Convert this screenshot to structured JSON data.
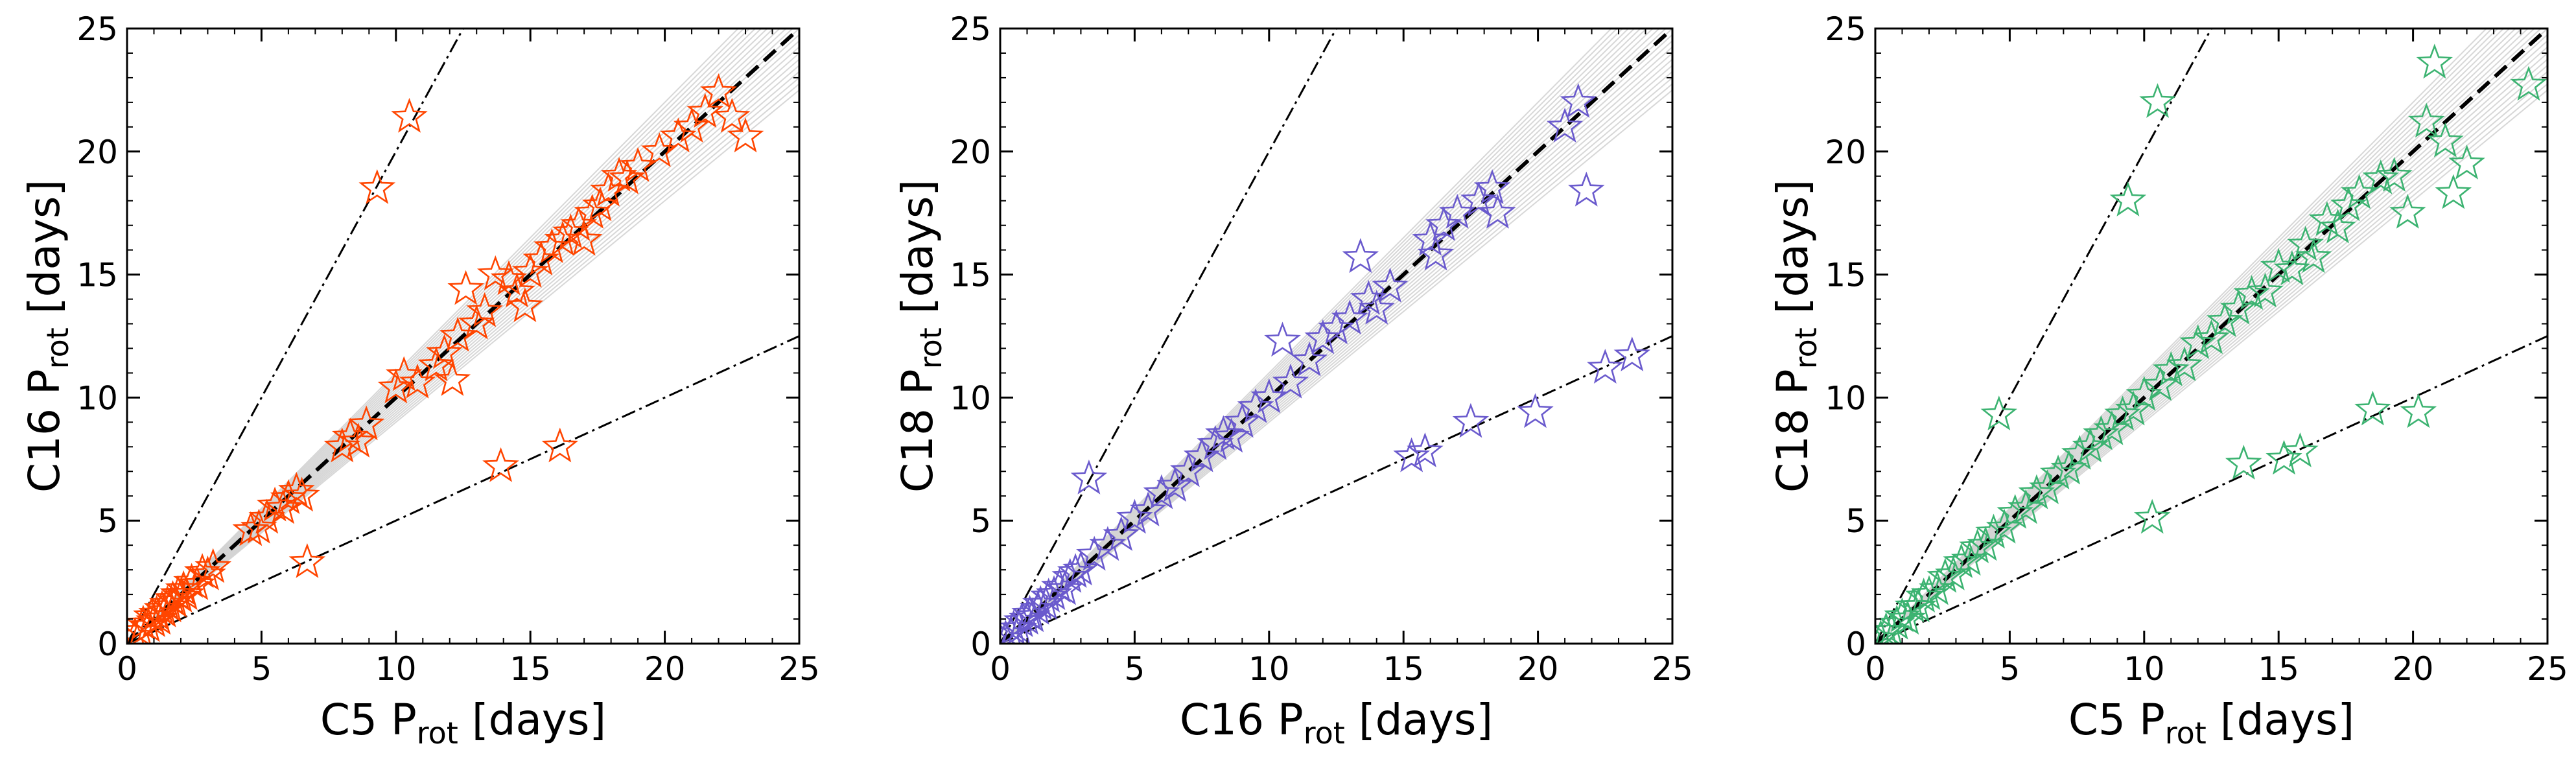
{
  "chart_data": [
    {
      "type": "scatter",
      "xlabel": "C5 P",
      "xlabel_sub": "rot",
      "xlabel_unit": " [days]",
      "ylabel": "C16 P",
      "ylabel_sub": "rot",
      "ylabel_unit": " [days]",
      "xlim": [
        0,
        25
      ],
      "ylim": [
        0,
        25
      ],
      "xticks": [
        0,
        5,
        10,
        15,
        20,
        25
      ],
      "yticks": [
        0,
        5,
        10,
        15,
        20,
        25
      ],
      "marker_color": "#ff4500",
      "reference_lines": [
        {
          "style": "dashed",
          "slope": 1
        },
        {
          "style": "dashdot",
          "slope": 2
        },
        {
          "style": "dashdot",
          "slope": 0.5
        }
      ],
      "band": {
        "color": "#d3d3d3",
        "slope_min": 0.9,
        "slope_max": 1.1
      },
      "points": [
        [
          0.3,
          0.3
        ],
        [
          0.5,
          0.5
        ],
        [
          0.6,
          0.8
        ],
        [
          0.8,
          0.7
        ],
        [
          0.9,
          1.1
        ],
        [
          1.0,
          0.9
        ],
        [
          1.1,
          1.2
        ],
        [
          1.2,
          1.0
        ],
        [
          1.3,
          1.4
        ],
        [
          1.4,
          1.3
        ],
        [
          1.5,
          1.6
        ],
        [
          1.6,
          1.5
        ],
        [
          1.7,
          1.8
        ],
        [
          1.8,
          1.7
        ],
        [
          1.9,
          2.0
        ],
        [
          2.0,
          1.9
        ],
        [
          2.1,
          2.2
        ],
        [
          2.2,
          2.0
        ],
        [
          2.4,
          2.5
        ],
        [
          2.6,
          2.4
        ],
        [
          2.8,
          2.9
        ],
        [
          3.0,
          2.8
        ],
        [
          3.2,
          3.1
        ],
        [
          4.6,
          4.6
        ],
        [
          4.9,
          4.7
        ],
        [
          5.2,
          5.1
        ],
        [
          5.5,
          5.6
        ],
        [
          5.8,
          5.5
        ],
        [
          6.0,
          5.9
        ],
        [
          6.3,
          6.2
        ],
        [
          6.5,
          6.0
        ],
        [
          6.7,
          3.3
        ],
        [
          8.0,
          8.0
        ],
        [
          8.3,
          8.4
        ],
        [
          8.6,
          8.2
        ],
        [
          8.9,
          8.9
        ],
        [
          9.3,
          18.5
        ],
        [
          10.0,
          10.4
        ],
        [
          10.3,
          10.9
        ],
        [
          10.5,
          21.4
        ],
        [
          10.8,
          10.6
        ],
        [
          11.5,
          11.3
        ],
        [
          11.8,
          11.8
        ],
        [
          12.1,
          10.7
        ],
        [
          12.3,
          12.5
        ],
        [
          12.6,
          14.4
        ],
        [
          13.0,
          13.0
        ],
        [
          13.3,
          13.5
        ],
        [
          13.7,
          15.0
        ],
        [
          13.9,
          7.2
        ],
        [
          14.2,
          14.8
        ],
        [
          14.5,
          14.3
        ],
        [
          14.8,
          13.7
        ],
        [
          15.0,
          15.1
        ],
        [
          15.4,
          15.6
        ],
        [
          15.8,
          16.1
        ],
        [
          16.1,
          8.0
        ],
        [
          16.2,
          16.4
        ],
        [
          16.5,
          16.7
        ],
        [
          16.8,
          17.0
        ],
        [
          17.0,
          16.4
        ],
        [
          17.3,
          17.5
        ],
        [
          17.6,
          17.8
        ],
        [
          17.9,
          18.4
        ],
        [
          18.3,
          19.0
        ],
        [
          18.6,
          18.9
        ],
        [
          19.0,
          19.4
        ],
        [
          19.8,
          20.0
        ],
        [
          20.5,
          20.6
        ],
        [
          21.0,
          21.0
        ],
        [
          21.5,
          21.6
        ],
        [
          22.0,
          22.4
        ],
        [
          22.5,
          21.4
        ],
        [
          23.0,
          20.6
        ]
      ]
    },
    {
      "type": "scatter",
      "xlabel": "C16 P",
      "xlabel_sub": "rot",
      "xlabel_unit": " [days]",
      "ylabel": "C18 P",
      "ylabel_sub": "rot",
      "ylabel_unit": " [days]",
      "xlim": [
        0,
        25
      ],
      "ylim": [
        0,
        25
      ],
      "xticks": [
        0,
        5,
        10,
        15,
        20,
        25
      ],
      "yticks": [
        0,
        5,
        10,
        15,
        20,
        25
      ],
      "marker_color": "#6a5acd",
      "reference_lines": [
        {
          "style": "dashed",
          "slope": 1
        },
        {
          "style": "dashdot",
          "slope": 2
        },
        {
          "style": "dashdot",
          "slope": 0.5
        }
      ],
      "band": {
        "color": "#d3d3d3",
        "slope_min": 0.9,
        "slope_max": 1.1
      },
      "points": [
        [
          0.2,
          0.2
        ],
        [
          0.4,
          0.4
        ],
        [
          0.5,
          0.6
        ],
        [
          0.7,
          0.6
        ],
        [
          0.8,
          0.9
        ],
        [
          1.0,
          1.0
        ],
        [
          1.1,
          1.2
        ],
        [
          1.2,
          1.1
        ],
        [
          1.4,
          1.4
        ],
        [
          1.5,
          1.6
        ],
        [
          1.7,
          1.6
        ],
        [
          1.8,
          1.9
        ],
        [
          2.0,
          2.0
        ],
        [
          2.2,
          2.3
        ],
        [
          2.4,
          2.2
        ],
        [
          2.6,
          2.7
        ],
        [
          2.8,
          2.9
        ],
        [
          3.0,
          3.0
        ],
        [
          3.3,
          6.7
        ],
        [
          3.5,
          3.6
        ],
        [
          4.0,
          4.0
        ],
        [
          4.5,
          4.4
        ],
        [
          5.0,
          5.1
        ],
        [
          5.5,
          5.4
        ],
        [
          6.0,
          6.1
        ],
        [
          6.5,
          6.4
        ],
        [
          7.0,
          7.0
        ],
        [
          7.5,
          7.6
        ],
        [
          8.0,
          8.1
        ],
        [
          8.3,
          8.5
        ],
        [
          8.6,
          8.4
        ],
        [
          9.0,
          9.0
        ],
        [
          9.5,
          9.6
        ],
        [
          10.0,
          10.0
        ],
        [
          10.5,
          12.3
        ],
        [
          10.8,
          10.6
        ],
        [
          11.5,
          11.5
        ],
        [
          12.0,
          12.4
        ],
        [
          12.5,
          12.8
        ],
        [
          13.0,
          13.2
        ],
        [
          13.4,
          15.7
        ],
        [
          13.7,
          14.0
        ],
        [
          14.0,
          13.6
        ],
        [
          14.5,
          14.5
        ],
        [
          15.3,
          7.6
        ],
        [
          15.8,
          7.8
        ],
        [
          16.0,
          16.4
        ],
        [
          16.2,
          15.8
        ],
        [
          16.5,
          17.0
        ],
        [
          17.0,
          17.5
        ],
        [
          17.5,
          9.0
        ],
        [
          17.8,
          18.0
        ],
        [
          18.3,
          18.5
        ],
        [
          18.5,
          17.5
        ],
        [
          19.9,
          9.4
        ],
        [
          21.0,
          21.0
        ],
        [
          21.5,
          22.0
        ],
        [
          21.8,
          18.4
        ],
        [
          22.5,
          11.2
        ],
        [
          23.5,
          11.7
        ]
      ]
    },
    {
      "type": "scatter",
      "xlabel": "C5 P",
      "xlabel_sub": "rot",
      "xlabel_unit": " [days]",
      "ylabel": "C18 P",
      "ylabel_sub": "rot",
      "ylabel_unit": " [days]",
      "xlim": [
        0,
        25
      ],
      "ylim": [
        0,
        25
      ],
      "xticks": [
        0,
        5,
        10,
        15,
        20,
        25
      ],
      "yticks": [
        0,
        5,
        10,
        15,
        20,
        25
      ],
      "marker_color": "#3cb371",
      "reference_lines": [
        {
          "style": "dashed",
          "slope": 1
        },
        {
          "style": "dashdot",
          "slope": 2
        },
        {
          "style": "dashdot",
          "slope": 0.5
        }
      ],
      "band": {
        "color": "#d3d3d3",
        "slope_min": 0.9,
        "slope_max": 1.1
      },
      "points": [
        [
          0.2,
          0.2
        ],
        [
          0.4,
          0.5
        ],
        [
          0.6,
          0.5
        ],
        [
          0.8,
          0.8
        ],
        [
          1.0,
          1.1
        ],
        [
          1.2,
          1.0
        ],
        [
          1.4,
          1.5
        ],
        [
          1.6,
          1.5
        ],
        [
          1.8,
          1.9
        ],
        [
          2.0,
          2.0
        ],
        [
          2.3,
          2.2
        ],
        [
          2.6,
          2.7
        ],
        [
          2.9,
          2.8
        ],
        [
          3.2,
          3.3
        ],
        [
          3.5,
          3.4
        ],
        [
          3.8,
          3.9
        ],
        [
          4.1,
          4.0
        ],
        [
          4.4,
          4.5
        ],
        [
          4.6,
          9.3
        ],
        [
          4.8,
          4.7
        ],
        [
          5.2,
          5.3
        ],
        [
          5.6,
          5.5
        ],
        [
          6.0,
          6.1
        ],
        [
          6.4,
          6.3
        ],
        [
          6.8,
          6.9
        ],
        [
          7.2,
          7.1
        ],
        [
          7.6,
          7.7
        ],
        [
          8.0,
          8.0
        ],
        [
          8.4,
          8.5
        ],
        [
          8.8,
          8.7
        ],
        [
          9.2,
          9.3
        ],
        [
          9.4,
          18.0
        ],
        [
          9.6,
          9.5
        ],
        [
          10.0,
          10.1
        ],
        [
          10.3,
          5.1
        ],
        [
          10.5,
          22.0
        ],
        [
          10.6,
          10.5
        ],
        [
          11.0,
          11.1
        ],
        [
          11.5,
          11.3
        ],
        [
          12.0,
          12.2
        ],
        [
          12.5,
          12.4
        ],
        [
          13.0,
          13.1
        ],
        [
          13.5,
          13.6
        ],
        [
          13.7,
          7.3
        ],
        [
          14.0,
          14.2
        ],
        [
          14.5,
          14.3
        ],
        [
          15.0,
          15.3
        ],
        [
          15.2,
          7.5
        ],
        [
          15.5,
          15.2
        ],
        [
          15.8,
          7.8
        ],
        [
          16.0,
          16.2
        ],
        [
          16.3,
          15.7
        ],
        [
          16.8,
          17.2
        ],
        [
          17.2,
          16.9
        ],
        [
          17.6,
          17.8
        ],
        [
          18.0,
          18.3
        ],
        [
          18.5,
          9.5
        ],
        [
          18.8,
          18.9
        ],
        [
          19.3,
          19.0
        ],
        [
          19.8,
          17.5
        ],
        [
          20.2,
          9.4
        ],
        [
          20.5,
          21.2
        ],
        [
          20.8,
          23.6
        ],
        [
          21.2,
          20.4
        ],
        [
          21.5,
          18.3
        ],
        [
          22.0,
          19.5
        ],
        [
          24.3,
          22.7
        ]
      ]
    }
  ]
}
